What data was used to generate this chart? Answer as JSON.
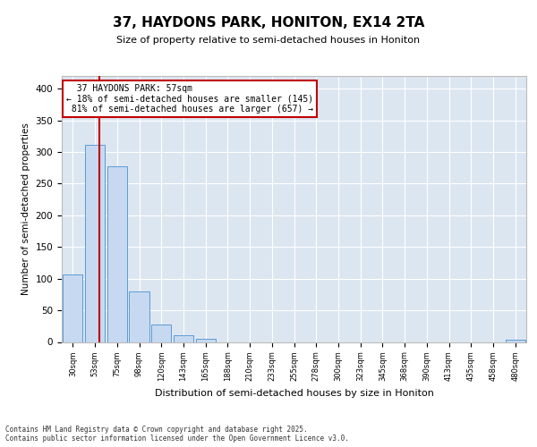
{
  "title": "37, HAYDONS PARK, HONITON, EX14 2TA",
  "subtitle": "Size of property relative to semi-detached houses in Honiton",
  "xlabel": "Distribution of semi-detached houses by size in Honiton",
  "ylabel": "Number of semi-detached properties",
  "property_sqm": 57,
  "property_label": "37 HAYDONS PARK: 57sqm",
  "pct_smaller": 18,
  "count_smaller": 145,
  "pct_larger": 81,
  "count_larger": 657,
  "categories": [
    "30sqm",
    "53sqm",
    "75sqm",
    "98sqm",
    "120sqm",
    "143sqm",
    "165sqm",
    "188sqm",
    "210sqm",
    "233sqm",
    "255sqm",
    "278sqm",
    "300sqm",
    "323sqm",
    "345sqm",
    "368sqm",
    "390sqm",
    "413sqm",
    "435sqm",
    "458sqm",
    "480sqm"
  ],
  "bin_centers": [
    30,
    53,
    75,
    98,
    120,
    143,
    165,
    188,
    210,
    233,
    255,
    278,
    300,
    323,
    345,
    368,
    390,
    413,
    435,
    458,
    480
  ],
  "values": [
    107,
    312,
    278,
    80,
    27,
    10,
    5,
    0,
    0,
    0,
    0,
    0,
    0,
    0,
    0,
    0,
    0,
    0,
    0,
    0,
    3
  ],
  "bar_color": "#c7d9f0",
  "bar_edge_color": "#5b9bd5",
  "marker_color": "#c00000",
  "bg_color": "#dce6f1",
  "ylim": [
    0,
    420
  ],
  "yticks": [
    0,
    50,
    100,
    150,
    200,
    250,
    300,
    350,
    400
  ],
  "footer": "Contains HM Land Registry data © Crown copyright and database right 2025.\nContains public sector information licensed under the Open Government Licence v3.0."
}
